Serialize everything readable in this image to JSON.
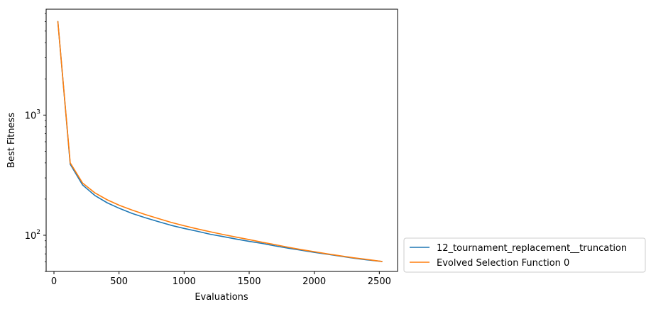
{
  "chart_data": {
    "type": "line",
    "xlabel": "Evaluations",
    "ylabel": "Best Fitness",
    "yscale": "log",
    "xlim": [
      -60,
      2640
    ],
    "ylim": [
      50,
      7600
    ],
    "grid": false,
    "legend_placement": "outside-bottom-right",
    "x_ticks": [
      0,
      500,
      1000,
      1500,
      2000,
      2500
    ],
    "y_ticks": [
      {
        "value": 100,
        "base": "10",
        "exp": "2"
      },
      {
        "value": 1000,
        "base": "10",
        "exp": "3"
      }
    ],
    "series": [
      {
        "name": "12_tournament_replacement__truncation",
        "color": "#1f77b4",
        "x": [
          30,
          125,
          220,
          315,
          410,
          505,
          600,
          700,
          800,
          900,
          1000,
          1100,
          1200,
          1300,
          1400,
          1500,
          1600,
          1700,
          1800,
          1900,
          2000,
          2100,
          2200,
          2300,
          2400,
          2520
        ],
        "y": [
          6000,
          390,
          262,
          214,
          186,
          167,
          152,
          140,
          130,
          121,
          114,
          108,
          102,
          97.5,
          93,
          89,
          85.5,
          81.5,
          78,
          75,
          72,
          69.5,
          67,
          64.5,
          62.5,
          60.5
        ]
      },
      {
        "name": "Evolved Selection Function 0",
        "color": "#ff7f0e",
        "x": [
          30,
          125,
          220,
          315,
          410,
          505,
          600,
          700,
          800,
          900,
          1000,
          1100,
          1200,
          1300,
          1400,
          1500,
          1600,
          1700,
          1800,
          1900,
          2000,
          2100,
          2200,
          2300,
          2400,
          2520
        ],
        "y": [
          6000,
          400,
          272,
          225,
          197,
          177,
          162,
          149,
          138,
          128,
          120,
          113,
          107,
          101.5,
          96.5,
          92,
          87.5,
          83.5,
          79.5,
          76,
          73,
          70,
          67.5,
          65,
          63,
          60.5
        ]
      }
    ]
  }
}
